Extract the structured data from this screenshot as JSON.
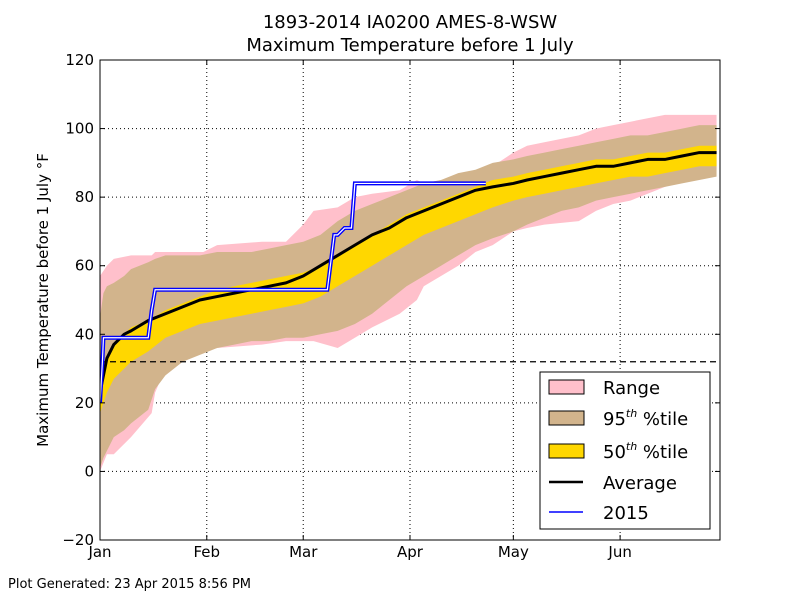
{
  "chart_data": {
    "type": "area",
    "title_line1": "1893-2014 IA0200 AMES-8-WSW",
    "title_line2": "Maximum Temperature before 1 July",
    "ylabel": "Maximum Temperature before 1 July °F",
    "footer": "Plot Generated: 23 Apr 2015 8:56 PM",
    "xlim": [
      1,
      181
    ],
    "ylim": [
      -20,
      120
    ],
    "yticks": [
      -20,
      0,
      20,
      40,
      60,
      80,
      100,
      120
    ],
    "ytick_labels": [
      "−20",
      "0",
      "20",
      "40",
      "60",
      "80",
      "100",
      "120"
    ],
    "xticks": [
      {
        "label": "Jan",
        "day": 1
      },
      {
        "label": "Feb",
        "day": 32
      },
      {
        "label": "Mar",
        "day": 60
      },
      {
        "label": "Apr",
        "day": 91
      },
      {
        "label": "May",
        "day": 121
      },
      {
        "label": "Jun",
        "day": 152
      }
    ],
    "grid": true,
    "threshold_line": {
      "y": 32,
      "style": "dashed"
    },
    "legend_position": "lower-right",
    "legend": [
      {
        "key": "range",
        "label": "Range",
        "sup": "",
        "suffix": ""
      },
      {
        "key": "p95",
        "label": "95",
        "sup": "th",
        "suffix": " %tile"
      },
      {
        "key": "p50",
        "label": "50",
        "sup": "th",
        "suffix": " %tile"
      },
      {
        "key": "average",
        "label": "Average",
        "sup": "",
        "suffix": ""
      },
      {
        "key": "y2015",
        "label": "2015",
        "sup": "",
        "suffix": ""
      }
    ],
    "colors": {
      "range": "#ffc0cb",
      "p95": "#d2b48c",
      "p50": "#ffd700",
      "average": "#000000",
      "y2015_outer": "#0000ff",
      "y2015_inner": "#ffffff",
      "threshold": "#000000"
    },
    "range_band": {
      "x": [
        1,
        3,
        5,
        10,
        16,
        17,
        20,
        31,
        35,
        48,
        55,
        60,
        63,
        70,
        75,
        80,
        88,
        93,
        95,
        105,
        110,
        115,
        121,
        125,
        130,
        140,
        145,
        150,
        155,
        160,
        165,
        170,
        175,
        180
      ],
      "upper": [
        57,
        60,
        62,
        63,
        63,
        64,
        64,
        64,
        66,
        67,
        67,
        72,
        76,
        77,
        80,
        81,
        82,
        85,
        84,
        86,
        87,
        89,
        93,
        95,
        96,
        98,
        100,
        101,
        102,
        103,
        104,
        104,
        104,
        104
      ],
      "lower": [
        0,
        5,
        5,
        10,
        17,
        23,
        30,
        35,
        36,
        37,
        38,
        38,
        38,
        36,
        39,
        42,
        46,
        50,
        54,
        60,
        64,
        66,
        70,
        71,
        72,
        73,
        76,
        78,
        79,
        81,
        83,
        85,
        86,
        88
      ]
    },
    "p95_band": {
      "x": [
        1,
        2,
        3,
        5,
        8,
        10,
        15,
        17,
        20,
        25,
        30,
        35,
        40,
        45,
        50,
        55,
        60,
        65,
        70,
        75,
        80,
        85,
        90,
        95,
        100,
        105,
        110,
        115,
        121,
        125,
        130,
        135,
        140,
        145,
        150,
        155,
        160,
        165,
        170,
        175,
        180
      ],
      "upper": [
        45,
        52,
        54,
        55,
        57,
        59,
        61,
        62,
        63,
        63,
        63,
        64,
        64,
        64,
        65,
        66,
        67,
        69,
        73,
        76,
        78,
        80,
        82,
        84,
        85,
        87,
        88,
        90,
        91,
        92,
        93,
        94,
        95,
        96,
        97,
        98,
        98,
        99,
        100,
        101,
        101
      ],
      "lower": [
        1,
        4,
        6,
        10,
        12,
        14,
        18,
        24,
        28,
        32,
        34,
        36,
        37,
        38,
        38,
        39,
        39,
        40,
        41,
        43,
        46,
        50,
        54,
        57,
        60,
        63,
        66,
        68,
        70,
        72,
        74,
        76,
        77,
        79,
        80,
        81,
        82,
        83,
        84,
        85,
        86
      ]
    },
    "p50_band": {
      "x": [
        1,
        2,
        3,
        5,
        8,
        10,
        15,
        20,
        25,
        30,
        35,
        40,
        45,
        50,
        55,
        60,
        65,
        70,
        75,
        80,
        85,
        90,
        95,
        100,
        105,
        110,
        115,
        121,
        125,
        130,
        135,
        140,
        145,
        150,
        155,
        160,
        165,
        170,
        175,
        180
      ],
      "upper": [
        27,
        30,
        33,
        37,
        40,
        42,
        44,
        47,
        49,
        51,
        53,
        54,
        55,
        56,
        57,
        58,
        60,
        63,
        66,
        69,
        72,
        75,
        77,
        79,
        81,
        83,
        85,
        86,
        87,
        88,
        89,
        90,
        91,
        91,
        92,
        93,
        93,
        94,
        95,
        95
      ],
      "lower": [
        17,
        20,
        23,
        27,
        30,
        32,
        35,
        39,
        41,
        43,
        44,
        45,
        46,
        47,
        48,
        49,
        51,
        54,
        57,
        60,
        63,
        66,
        69,
        71,
        73,
        75,
        77,
        79,
        80,
        81,
        82,
        83,
        84,
        85,
        86,
        86,
        87,
        88,
        89,
        89
      ]
    },
    "average": {
      "x": [
        1,
        2,
        3,
        5,
        8,
        10,
        15,
        20,
        25,
        30,
        35,
        40,
        45,
        50,
        55,
        60,
        65,
        70,
        75,
        80,
        85,
        90,
        95,
        100,
        105,
        110,
        115,
        121,
        125,
        130,
        135,
        140,
        145,
        150,
        155,
        160,
        165,
        170,
        175,
        180
      ],
      "values": [
        23,
        28,
        33,
        37,
        40,
        41,
        44,
        46,
        48,
        50,
        51,
        52,
        53,
        54,
        55,
        57,
        60,
        63,
        66,
        69,
        71,
        74,
        76,
        78,
        80,
        82,
        83,
        84,
        85,
        86,
        87,
        88,
        89,
        89,
        90,
        91,
        91,
        92,
        93,
        93
      ]
    },
    "series_2015": {
      "x": [
        1,
        1.7,
        2,
        3,
        5,
        15,
        16,
        17,
        18,
        20,
        40,
        55,
        62,
        67,
        68,
        69,
        70,
        72,
        73,
        74,
        75,
        76,
        80,
        90,
        100,
        110,
        113
      ],
      "values": [
        20,
        32,
        39,
        39,
        39,
        39,
        47,
        53,
        53,
        53,
        53,
        53,
        53,
        53,
        61,
        69,
        69,
        71,
        71,
        71,
        84,
        84,
        84,
        84,
        84,
        84,
        84
      ]
    }
  }
}
